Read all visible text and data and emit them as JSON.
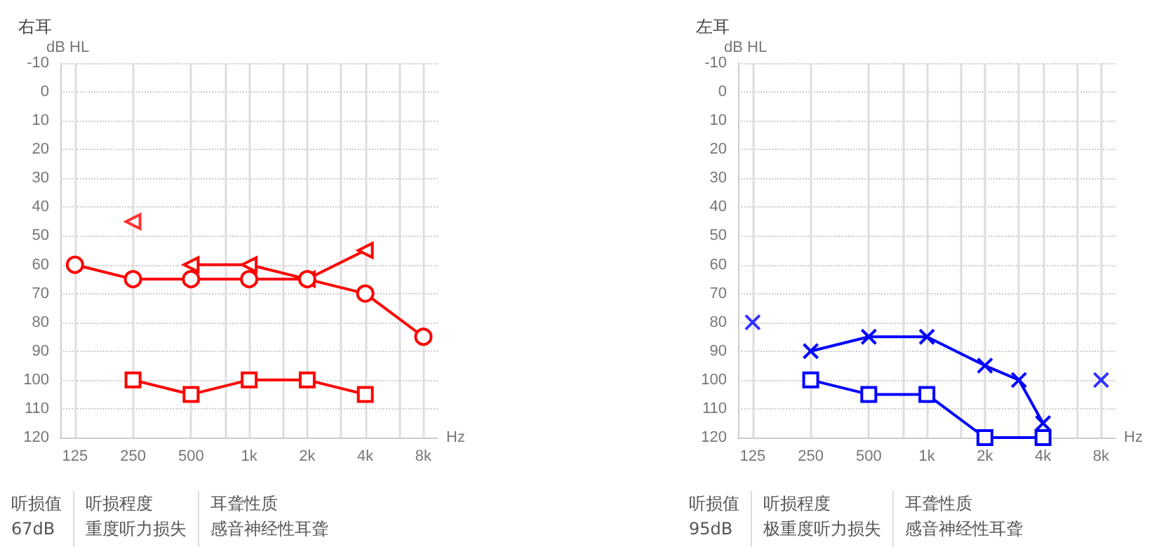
{
  "chart_data": [
    {
      "type": "line",
      "title": "右耳",
      "ylabel": "dB HL",
      "xlabel": "Hz",
      "log": "x",
      "xlim": [
        105,
        9500
      ],
      "xticks": [
        125,
        250,
        500,
        {
          "value": 750,
          "label": null
        },
        {
          "value": 1000,
          "label": "1k"
        },
        {
          "value": 1500,
          "label": null
        },
        {
          "value": 2000,
          "label": "2k"
        },
        {
          "value": 3000,
          "label": null
        },
        {
          "value": 4000,
          "label": "4k"
        },
        {
          "value": 6000,
          "label": null
        },
        {
          "value": 8000,
          "label": "8k"
        }
      ],
      "ylim": [
        120,
        -10
      ],
      "yticks": [
        -10,
        0,
        10,
        20,
        30,
        40,
        50,
        60,
        70,
        80,
        90,
        100,
        110,
        120
      ],
      "grid": true,
      "series": [
        {
          "color": "#ff0000",
          "marker": "circle",
          "x": [
            125,
            250,
            500,
            1000,
            2000,
            4000,
            8000
          ],
          "values": [
            60,
            65,
            65,
            65,
            65,
            70,
            85
          ]
        },
        {
          "color": "#ff0000",
          "marker": "triangle",
          "x": [
            500,
            1000,
            2000,
            4000
          ],
          "values": [
            60,
            60,
            65,
            55
          ]
        },
        {
          "type": "scatter",
          "color": "#ff0000",
          "marker": "triangle",
          "x": [
            250
          ],
          "values": [
            45
          ]
        },
        {
          "color": "#ff0000",
          "marker": "square",
          "x": [
            250,
            500,
            1000,
            2000,
            4000
          ],
          "values": [
            100,
            105,
            100,
            100,
            105
          ]
        }
      ],
      "annotations": [
        "听损值",
        "67dB",
        "听损程度",
        "重度听力损失",
        "耳聋性质",
        "感音神经性耳聋"
      ]
    },
    {
      "type": "line",
      "title": "左耳",
      "ylabel": "dB HL",
      "xlabel": "Hz",
      "log": "x",
      "xlim": [
        105,
        9500
      ],
      "xticks": [
        125,
        250,
        500,
        {
          "value": 750,
          "label": null
        },
        {
          "value": 1000,
          "label": "1k"
        },
        {
          "value": 1500,
          "label": null
        },
        {
          "value": 2000,
          "label": "2k"
        },
        {
          "value": 3000,
          "label": null
        },
        {
          "value": 4000,
          "label": "4k"
        },
        {
          "value": 6000,
          "label": null
        },
        {
          "value": 8000,
          "label": "8k"
        }
      ],
      "ylim": [
        120,
        -10
      ],
      "yticks": [
        -10,
        0,
        10,
        20,
        30,
        40,
        50,
        60,
        70,
        80,
        90,
        100,
        110,
        120
      ],
      "grid": true,
      "series": [
        {
          "color": "#0000ff",
          "marker": "cross",
          "x": [
            250,
            500,
            1000,
            2000,
            3000,
            4000
          ],
          "values": [
            90,
            85,
            85,
            95,
            100,
            115
          ]
        },
        {
          "type": "scatter",
          "color": "#0000ff",
          "marker": "cross",
          "x": [
            125,
            8000
          ],
          "values": [
            80,
            100
          ]
        },
        {
          "color": "#0000ff",
          "marker": "square",
          "x": [
            250,
            500,
            1000,
            2000,
            4000
          ],
          "values": [
            100,
            105,
            105,
            120,
            120
          ]
        }
      ],
      "annotations": [
        "听损值",
        "95dB",
        "听损程度",
        "极重度听力损失",
        "耳聋性质",
        "感音神经性耳聋"
      ]
    }
  ]
}
